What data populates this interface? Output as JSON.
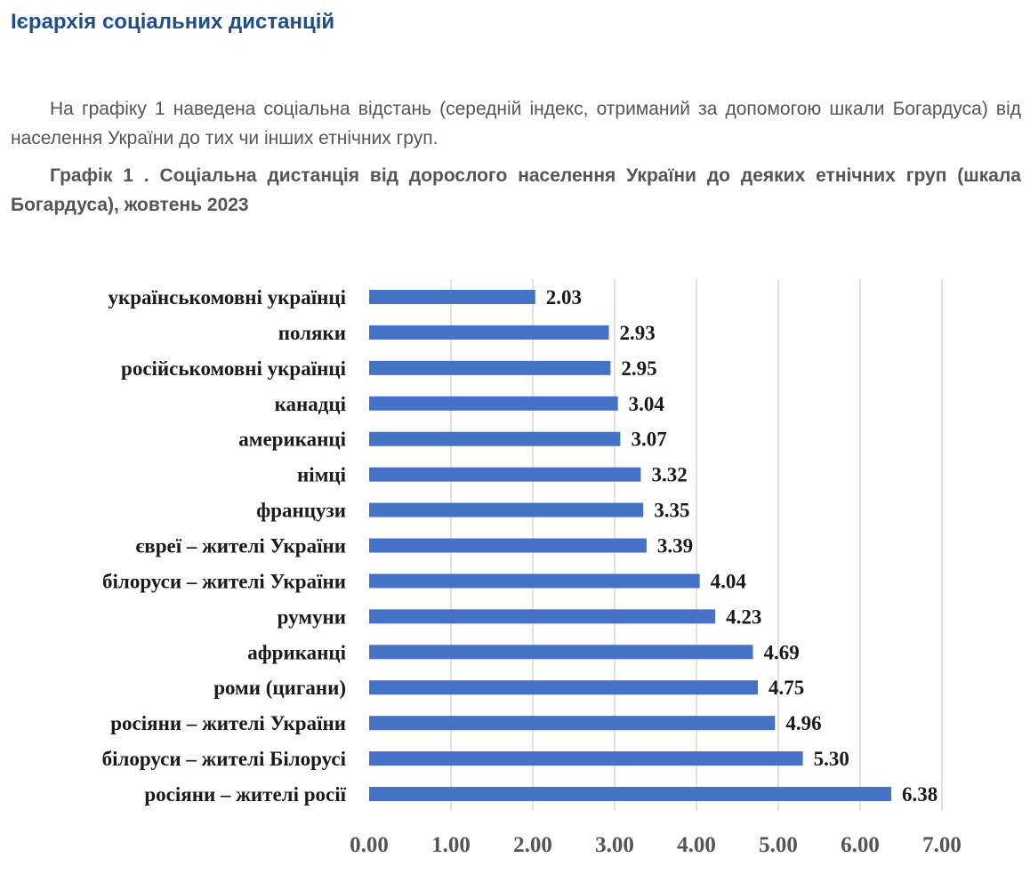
{
  "header": {
    "title": "Ієрархія соціальних дистанцій"
  },
  "intro": {
    "text": "На графіку 1 наведена соціальна відстань (середній індекс, отриманий за допомогою шкали Богардуса) від населення України до тих чи інших етнічних груп."
  },
  "caption": {
    "text": "Графік 1 . Соціальна дистанція від дорослого населення України до деяких етнічних груп (шкала Богардуса), жовтень 2023"
  },
  "chart_data": {
    "type": "bar",
    "orientation": "horizontal",
    "categories": [
      "українськомовні українці",
      "поляки",
      "російськомовні українці",
      "канадці",
      "американці",
      "німці",
      "французи",
      "євреї – жителі України",
      "білоруси – жителі України",
      "румуни",
      "африканці",
      "роми (цигани)",
      "росіяни – жителі України",
      "білоруси – жителі Білорусі",
      "росіяни – жителі росії"
    ],
    "values": [
      2.03,
      2.93,
      2.95,
      3.04,
      3.07,
      3.32,
      3.35,
      3.39,
      4.04,
      4.23,
      4.69,
      4.75,
      4.96,
      5.3,
      6.38
    ],
    "value_labels": [
      "2.03",
      "2.93",
      "2.95",
      "3.04",
      "3.07",
      "3.32",
      "3.35",
      "3.39",
      "4.04",
      "4.23",
      "4.69",
      "4.75",
      "4.96",
      "5.30",
      "6.38"
    ],
    "xlim": [
      0,
      7
    ],
    "x_ticks": [
      "0.00",
      "1.00",
      "2.00",
      "3.00",
      "4.00",
      "5.00",
      "6.00",
      "7.00"
    ],
    "grid": "vertical",
    "bar_color": "#4472c4",
    "grid_color": "#d9d9d9"
  }
}
